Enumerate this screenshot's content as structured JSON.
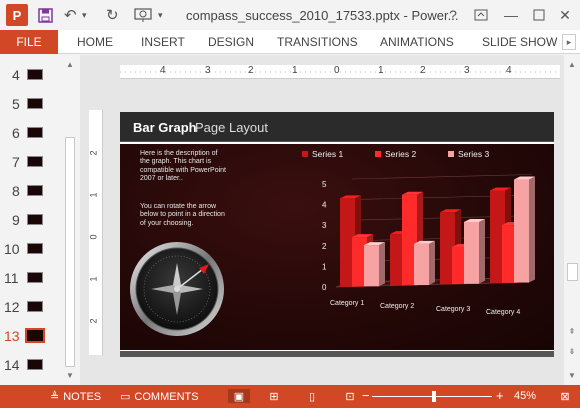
{
  "window": {
    "app_logo": "P",
    "title": "compass_success_2010_17533.pptx - Power...",
    "help": "?",
    "minimize": "—",
    "close": "✕"
  },
  "ribbon": {
    "file": "FILE",
    "tabs": [
      "HOME",
      "INSERT",
      "DESIGN",
      "TRANSITIONS",
      "ANIMATIONS",
      "SLIDE SHOW"
    ],
    "more": "▸"
  },
  "thumbnails": [
    {
      "num": "4"
    },
    {
      "num": "5"
    },
    {
      "num": "6"
    },
    {
      "num": "7"
    },
    {
      "num": "8"
    },
    {
      "num": "9"
    },
    {
      "num": "10"
    },
    {
      "num": "11"
    },
    {
      "num": "12"
    },
    {
      "num": "13",
      "active": true
    },
    {
      "num": "14"
    }
  ],
  "ruler": {
    "h_labels": [
      "4",
      "3",
      "2",
      "1",
      "0",
      "1",
      "2",
      "3",
      "4"
    ],
    "v_labels": [
      "2",
      "1",
      "0",
      "1",
      "2"
    ]
  },
  "slide": {
    "title_bold": "Bar Graph",
    "title_rest": "Page Layout",
    "description": "Here is the description of the graph.  This chart is compatible with PowerPoint 2007 or later..",
    "rotate_note": "You can rotate the arrow below to point in a direction of your choosing."
  },
  "chart_data": {
    "type": "bar",
    "categories": [
      "Category 1",
      "Category 2",
      "Category 3",
      "Category 4"
    ],
    "series": [
      {
        "name": "Series 1",
        "values": [
          4.3,
          2.5,
          3.5,
          4.5
        ],
        "color": "#c41818"
      },
      {
        "name": "Series 2",
        "values": [
          2.4,
          4.4,
          1.8,
          2.8
        ],
        "color": "#ff2b2b"
      },
      {
        "name": "Series 3",
        "values": [
          2.0,
          2.0,
          3.0,
          5.0
        ],
        "color": "#f7a3a3"
      }
    ],
    "yticks": [
      "0",
      "1",
      "2",
      "3",
      "4",
      "5"
    ],
    "ylim": [
      0,
      5
    ],
    "legend_position": "top"
  },
  "statusbar": {
    "notes": "NOTES",
    "comments": "COMMENTS",
    "zoom_minus": "−",
    "zoom_plus": "+",
    "zoom": "45%"
  }
}
